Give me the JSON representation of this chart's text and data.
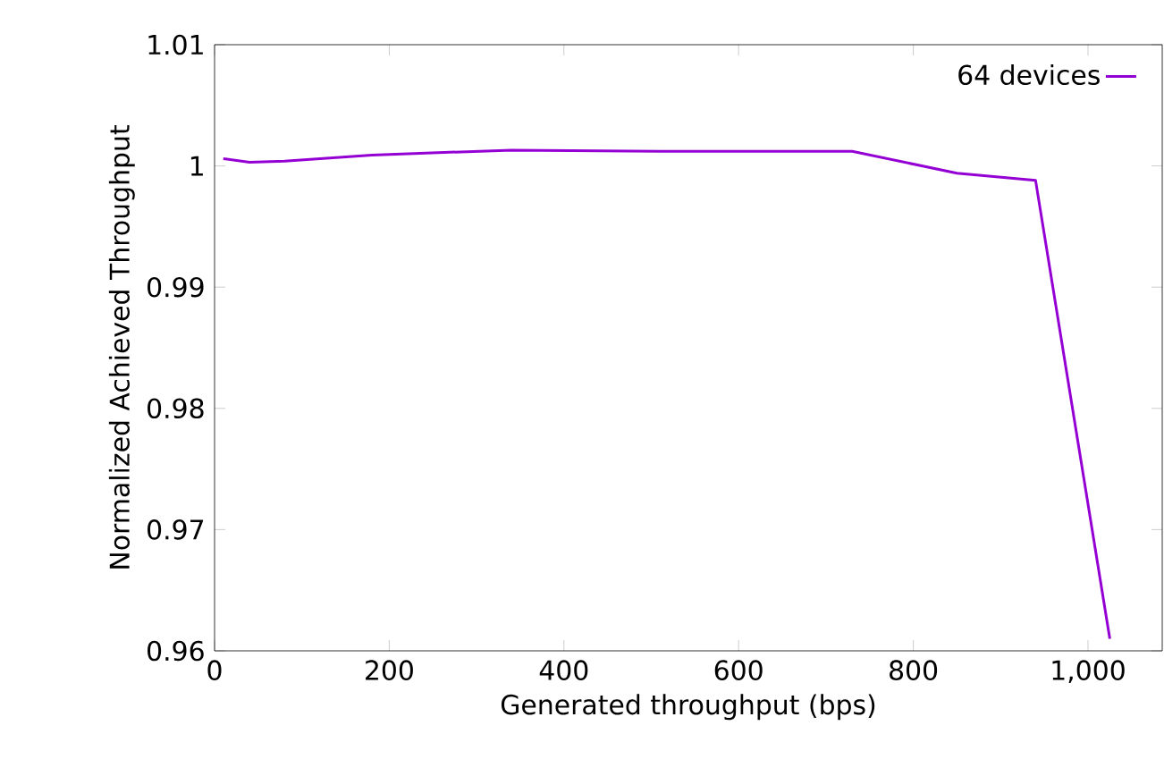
{
  "chart_data": {
    "type": "line",
    "xlabel": "Generated throughput (bps)",
    "ylabel": "Normalized Achieved Throughput",
    "x": [
      10,
      40,
      80,
      180,
      340,
      510,
      730,
      850,
      940,
      1025
    ],
    "series": [
      {
        "name": "64 devices",
        "color": "#9400d3",
        "values": [
          1.0006,
          1.0003,
          1.0004,
          1.0009,
          1.0013,
          1.0012,
          1.0012,
          0.9994,
          0.9988,
          0.961
        ]
      }
    ],
    "xlim": [
      0,
      1085
    ],
    "ylim": [
      0.96,
      1.01
    ],
    "xticks": [
      0,
      200,
      400,
      600,
      800,
      {
        "value": 1000,
        "label": "1,000"
      }
    ],
    "yticks": [
      0.96,
      0.97,
      0.98,
      0.99,
      1,
      1.01
    ],
    "legend": "top right",
    "grid": false,
    "marker": "none",
    "line_style": "solid"
  }
}
